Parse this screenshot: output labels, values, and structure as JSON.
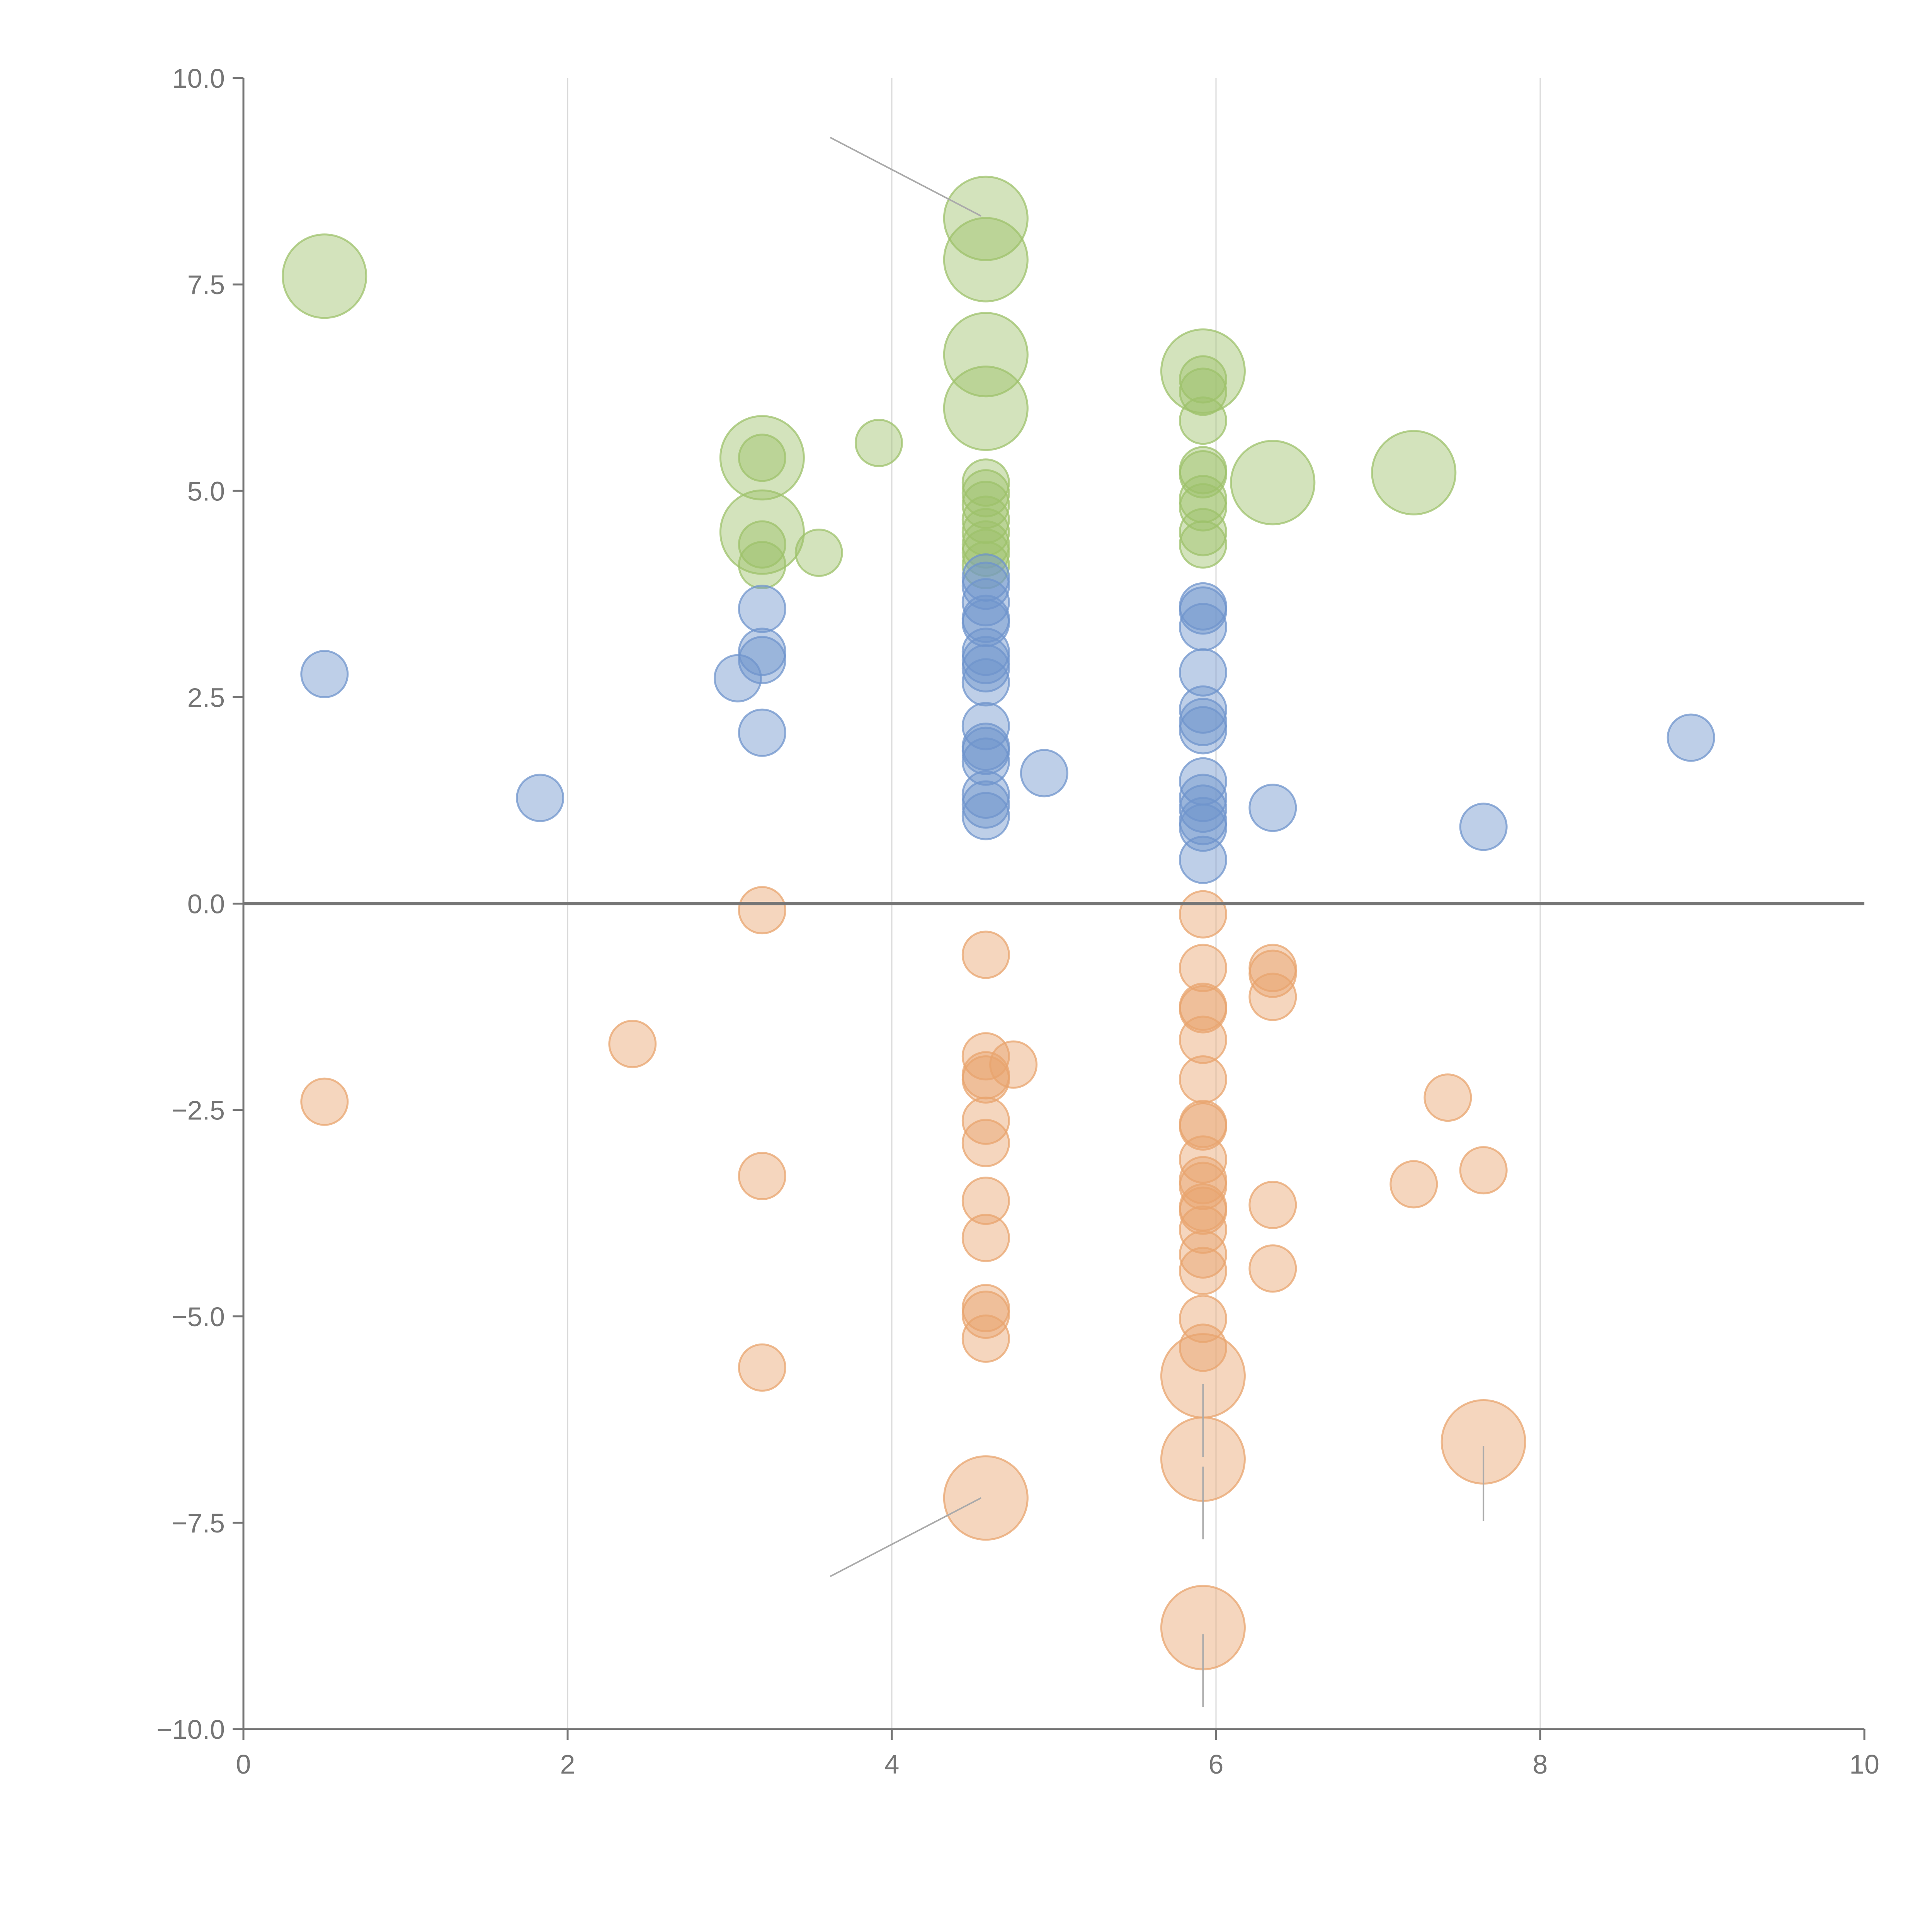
{
  "chart_data": {
    "type": "scatter",
    "title": "",
    "xlabel": "",
    "ylabel": "",
    "xlim": [
      0,
      10
    ],
    "ylim": [
      -10,
      10
    ],
    "x_ticks": [
      0,
      2,
      4,
      6,
      8,
      10
    ],
    "x_tick_labels": [
      "0",
      "2",
      "4",
      "6",
      "8",
      "10"
    ],
    "y_ticks": [
      10,
      7.5,
      5,
      2.5,
      0,
      -2.5,
      -5,
      -7.5,
      -10
    ],
    "y_tick_labels": [
      "10.0",
      "7.5",
      "5.0",
      "2.5",
      "0.0",
      "−2.5",
      "−5.0",
      "−7.5",
      "−10.0"
    ],
    "vertical_grid_at": [
      2,
      4,
      6,
      8
    ],
    "zero_line": 0,
    "series": [
      {
        "name": "green",
        "color": "#9dc26b",
        "points": [
          [
            0.5,
            7.6,
            1.8
          ],
          [
            4.58,
            8.3,
            1.8
          ],
          [
            4.58,
            7.8,
            1.8
          ],
          [
            4.58,
            6.65,
            1.8
          ],
          [
            4.58,
            6.0,
            1.8
          ],
          [
            3.2,
            5.4,
            1.8
          ],
          [
            3.2,
            4.5,
            1.8
          ],
          [
            5.92,
            6.45,
            1.8
          ],
          [
            6.35,
            5.1,
            1.8
          ],
          [
            7.22,
            5.22,
            1.8
          ],
          [
            3.92,
            5.58,
            1
          ],
          [
            3.55,
            4.25,
            1
          ],
          [
            3.2,
            5.4,
            1
          ],
          [
            3.2,
            4.35,
            1
          ],
          [
            3.2,
            4.1,
            1
          ],
          [
            4.58,
            5.1,
            1
          ],
          [
            4.58,
            4.97,
            1
          ],
          [
            4.58,
            4.83,
            1
          ],
          [
            4.58,
            4.65,
            1
          ],
          [
            4.58,
            4.5,
            1
          ],
          [
            4.58,
            4.35,
            1
          ],
          [
            4.58,
            4.25,
            1
          ],
          [
            4.58,
            4.1,
            1
          ],
          [
            5.92,
            6.35,
            1
          ],
          [
            5.92,
            6.2,
            1
          ],
          [
            5.92,
            5.85,
            1
          ],
          [
            5.92,
            5.25,
            1
          ],
          [
            5.92,
            5.2,
            1
          ],
          [
            5.92,
            4.9,
            1
          ],
          [
            5.92,
            4.8,
            1
          ],
          [
            5.92,
            4.5,
            1
          ],
          [
            5.92,
            4.35,
            1
          ]
        ]
      },
      {
        "name": "blue",
        "color": "#6f94cc",
        "points": [
          [
            0.5,
            2.78,
            1
          ],
          [
            1.83,
            1.28,
            1
          ],
          [
            3.05,
            2.73,
            1
          ],
          [
            3.2,
            3.57,
            1
          ],
          [
            3.2,
            3.05,
            1
          ],
          [
            3.2,
            2.95,
            1
          ],
          [
            3.2,
            2.07,
            1
          ],
          [
            4.58,
            3.95,
            1
          ],
          [
            4.58,
            3.85,
            1
          ],
          [
            4.58,
            3.65,
            1
          ],
          [
            4.58,
            3.45,
            1
          ],
          [
            4.58,
            3.4,
            1
          ],
          [
            4.58,
            3.05,
            1
          ],
          [
            4.58,
            2.95,
            1
          ],
          [
            4.58,
            2.85,
            1
          ],
          [
            4.58,
            2.68,
            1
          ],
          [
            4.58,
            2.15,
            1
          ],
          [
            4.58,
            1.9,
            1
          ],
          [
            4.58,
            1.85,
            1
          ],
          [
            4.58,
            1.72,
            1
          ],
          [
            4.58,
            1.32,
            1
          ],
          [
            4.58,
            1.2,
            1
          ],
          [
            4.58,
            1.06,
            1
          ],
          [
            4.94,
            1.58,
            1
          ],
          [
            5.92,
            3.6,
            1
          ],
          [
            5.92,
            3.55,
            1
          ],
          [
            5.92,
            3.35,
            1
          ],
          [
            5.92,
            2.8,
            1
          ],
          [
            5.92,
            2.35,
            1
          ],
          [
            5.92,
            2.2,
            1
          ],
          [
            5.92,
            2.1,
            1
          ],
          [
            5.92,
            1.48,
            1
          ],
          [
            5.92,
            1.28,
            1
          ],
          [
            5.92,
            1.15,
            1
          ],
          [
            5.92,
            1.0,
            1
          ],
          [
            5.92,
            0.92,
            1
          ],
          [
            5.92,
            0.53,
            1
          ],
          [
            6.35,
            1.16,
            1
          ],
          [
            7.65,
            0.93,
            1
          ],
          [
            8.93,
            2.01,
            1
          ]
        ]
      },
      {
        "name": "orange",
        "color": "#e8a46e",
        "points": [
          [
            0.5,
            -2.4,
            1
          ],
          [
            2.4,
            -1.7,
            1
          ],
          [
            3.2,
            -0.08,
            1
          ],
          [
            3.2,
            -3.3,
            1
          ],
          [
            3.2,
            -5.62,
            1
          ],
          [
            4.58,
            -0.62,
            1
          ],
          [
            4.58,
            -1.85,
            1
          ],
          [
            4.58,
            -2.08,
            1
          ],
          [
            4.58,
            -2.13,
            1
          ],
          [
            4.75,
            -1.95,
            1
          ],
          [
            4.58,
            -2.63,
            1
          ],
          [
            4.58,
            -2.9,
            1
          ],
          [
            4.58,
            -3.6,
            1
          ],
          [
            4.58,
            -4.05,
            1
          ],
          [
            4.58,
            -4.9,
            1
          ],
          [
            4.58,
            -4.98,
            1
          ],
          [
            4.58,
            -5.27,
            1
          ],
          [
            4.58,
            -7.2,
            1.8
          ],
          [
            5.92,
            -0.13,
            1
          ],
          [
            5.92,
            -0.78,
            1
          ],
          [
            5.92,
            -1.25,
            1
          ],
          [
            5.92,
            -1.28,
            1
          ],
          [
            5.92,
            -1.65,
            1
          ],
          [
            5.92,
            -2.13,
            1
          ],
          [
            5.92,
            -2.67,
            1
          ],
          [
            5.92,
            -2.7,
            1
          ],
          [
            5.92,
            -3.1,
            1
          ],
          [
            5.92,
            -3.35,
            1
          ],
          [
            5.92,
            -3.42,
            1
          ],
          [
            5.92,
            -3.68,
            1
          ],
          [
            5.92,
            -3.72,
            1
          ],
          [
            5.92,
            -3.95,
            1
          ],
          [
            5.92,
            -4.25,
            1
          ],
          [
            5.92,
            -4.45,
            1
          ],
          [
            5.92,
            -5.03,
            1
          ],
          [
            5.92,
            -5.38,
            1
          ],
          [
            5.92,
            -5.72,
            1.8
          ],
          [
            5.92,
            -6.73,
            1.8
          ],
          [
            5.92,
            -8.77,
            1.8
          ],
          [
            6.35,
            -0.78,
            1
          ],
          [
            6.35,
            -0.85,
            1
          ],
          [
            6.35,
            -1.13,
            1
          ],
          [
            6.35,
            -3.65,
            1
          ],
          [
            6.35,
            -4.42,
            1
          ],
          [
            7.22,
            -3.4,
            1
          ],
          [
            7.43,
            -2.35,
            1
          ],
          [
            7.65,
            -3.23,
            1
          ],
          [
            7.65,
            -6.52,
            1.8
          ]
        ]
      }
    ],
    "leader_lines": [
      [
        [
          3.62,
          9.28
        ],
        [
          4.55,
          8.33
        ]
      ],
      [
        [
          3.62,
          -8.15
        ],
        [
          4.55,
          -7.2
        ]
      ],
      [
        [
          5.92,
          -5.82
        ],
        [
          5.92,
          -6.7
        ]
      ],
      [
        [
          5.92,
          -6.82
        ],
        [
          5.92,
          -7.7
        ]
      ],
      [
        [
          5.92,
          -8.85
        ],
        [
          5.92,
          -9.73
        ]
      ],
      [
        [
          7.65,
          -6.57
        ],
        [
          7.65,
          -7.48
        ]
      ]
    ]
  }
}
